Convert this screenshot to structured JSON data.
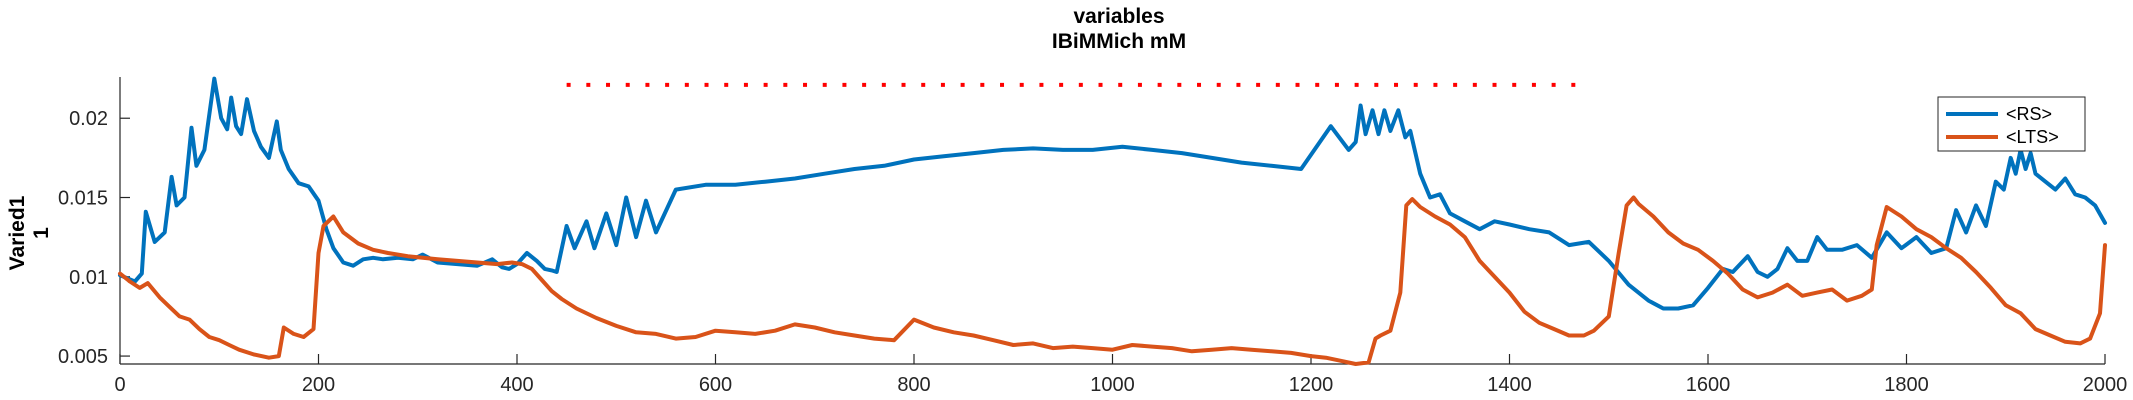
{
  "chart_data": {
    "type": "line",
    "title": [
      "variables",
      "IBiMMich mM"
    ],
    "ylabel": [
      "Varied1",
      "1"
    ],
    "xlabel": "",
    "xlim": [
      0,
      2000
    ],
    "ylim": [
      0.0045,
      0.0226
    ],
    "xticks": [
      0,
      200,
      400,
      600,
      800,
      1000,
      1200,
      1400,
      1600,
      1800,
      2000
    ],
    "yticks": [
      0.005,
      0.01,
      0.015,
      0.02
    ],
    "ytick_labels": [
      "0.005",
      "0.01",
      "0.015",
      "0.02"
    ],
    "grid": false,
    "legend_position": "top-right",
    "stimulus_marker": {
      "x_start": 450,
      "x_end": 1480,
      "y": 0.0221,
      "color": "#ff0000",
      "style": "dotted"
    },
    "series": [
      {
        "name": "<RS>",
        "color": "#0072bd",
        "x": [
          0,
          15,
          22,
          26,
          35,
          45,
          52,
          57,
          65,
          72,
          77,
          85,
          95,
          102,
          108,
          112,
          117,
          122,
          128,
          135,
          142,
          150,
          158,
          162,
          170,
          180,
          190,
          200,
          208,
          215,
          225,
          235,
          245,
          255,
          265,
          280,
          295,
          305,
          320,
          340,
          360,
          375,
          385,
          392,
          400,
          410,
          420,
          428,
          435,
          440,
          450,
          458,
          470,
          478,
          490,
          500,
          510,
          520,
          530,
          540,
          560,
          590,
          620,
          650,
          680,
          710,
          740,
          770,
          800,
          830,
          860,
          890,
          920,
          950,
          980,
          1010,
          1040,
          1070,
          1100,
          1130,
          1160,
          1190,
          1220,
          1238,
          1245,
          1250,
          1255,
          1262,
          1268,
          1274,
          1280,
          1288,
          1295,
          1300,
          1310,
          1320,
          1330,
          1340,
          1355,
          1370,
          1385,
          1400,
          1420,
          1440,
          1460,
          1480,
          1500,
          1520,
          1540,
          1555,
          1570,
          1585,
          1600,
          1615,
          1625,
          1640,
          1650,
          1660,
          1670,
          1680,
          1690,
          1700,
          1710,
          1720,
          1735,
          1750,
          1765,
          1780,
          1795,
          1810,
          1825,
          1840,
          1850,
          1860,
          1870,
          1880,
          1890,
          1898,
          1905,
          1910,
          1915,
          1920,
          1925,
          1930,
          1940,
          1950,
          1960,
          1970,
          1980,
          1990,
          2000
        ],
        "y": [
          0.0101,
          0.0097,
          0.0102,
          0.0141,
          0.0122,
          0.0128,
          0.0163,
          0.0145,
          0.015,
          0.0194,
          0.017,
          0.018,
          0.0225,
          0.02,
          0.0193,
          0.0213,
          0.0195,
          0.019,
          0.0212,
          0.0192,
          0.0182,
          0.0175,
          0.0198,
          0.018,
          0.0168,
          0.0159,
          0.0157,
          0.0148,
          0.013,
          0.0118,
          0.0109,
          0.0107,
          0.0111,
          0.0112,
          0.0111,
          0.0112,
          0.0111,
          0.0114,
          0.0109,
          0.0108,
          0.0107,
          0.0111,
          0.0106,
          0.0105,
          0.0108,
          0.0115,
          0.011,
          0.0105,
          0.0104,
          0.0103,
          0.0132,
          0.0118,
          0.0135,
          0.0118,
          0.014,
          0.012,
          0.015,
          0.0125,
          0.0148,
          0.0128,
          0.0155,
          0.0158,
          0.0158,
          0.016,
          0.0162,
          0.0165,
          0.0168,
          0.017,
          0.0174,
          0.0176,
          0.0178,
          0.018,
          0.0181,
          0.018,
          0.018,
          0.0182,
          0.018,
          0.0178,
          0.0175,
          0.0172,
          0.017,
          0.0168,
          0.0195,
          0.018,
          0.0185,
          0.0208,
          0.019,
          0.0205,
          0.019,
          0.0205,
          0.0192,
          0.0205,
          0.0188,
          0.0192,
          0.0165,
          0.015,
          0.0152,
          0.014,
          0.0135,
          0.013,
          0.0135,
          0.0133,
          0.013,
          0.0128,
          0.012,
          0.0122,
          0.011,
          0.0095,
          0.0085,
          0.008,
          0.008,
          0.0082,
          0.0093,
          0.0105,
          0.0103,
          0.0113,
          0.0103,
          0.01,
          0.0105,
          0.0118,
          0.011,
          0.011,
          0.0125,
          0.0117,
          0.0117,
          0.012,
          0.0112,
          0.0128,
          0.0118,
          0.0125,
          0.0115,
          0.0118,
          0.0142,
          0.0128,
          0.0145,
          0.0132,
          0.016,
          0.0155,
          0.0175,
          0.0165,
          0.018,
          0.0168,
          0.0178,
          0.0165,
          0.016,
          0.0155,
          0.0162,
          0.0152,
          0.015,
          0.0145,
          0.0134
        ]
      },
      {
        "name": "<LTS>",
        "color": "#d95319",
        "x": [
          0,
          10,
          20,
          28,
          40,
          50,
          60,
          70,
          80,
          90,
          100,
          110,
          120,
          135,
          150,
          160,
          165,
          175,
          185,
          195,
          200,
          205,
          215,
          225,
          240,
          255,
          270,
          290,
          305,
          320,
          340,
          360,
          380,
          395,
          405,
          415,
          425,
          435,
          445,
          460,
          480,
          500,
          520,
          540,
          560,
          580,
          600,
          620,
          640,
          660,
          680,
          700,
          720,
          740,
          760,
          780,
          800,
          820,
          840,
          860,
          880,
          900,
          920,
          940,
          960,
          980,
          1000,
          1020,
          1040,
          1060,
          1080,
          1100,
          1120,
          1140,
          1160,
          1180,
          1200,
          1215,
          1230,
          1245,
          1258,
          1265,
          1270,
          1280,
          1290,
          1296,
          1302,
          1310,
          1325,
          1340,
          1355,
          1370,
          1385,
          1400,
          1415,
          1430,
          1445,
          1460,
          1475,
          1485,
          1500,
          1510,
          1518,
          1525,
          1530,
          1545,
          1560,
          1575,
          1590,
          1605,
          1620,
          1635,
          1650,
          1665,
          1680,
          1695,
          1710,
          1725,
          1740,
          1755,
          1765,
          1770,
          1780,
          1795,
          1810,
          1825,
          1840,
          1855,
          1870,
          1885,
          1900,
          1915,
          1930,
          1945,
          1960,
          1975,
          1985,
          1995,
          2000
        ],
        "y": [
          0.0102,
          0.0097,
          0.0093,
          0.0096,
          0.0087,
          0.0081,
          0.0075,
          0.0073,
          0.0067,
          0.0062,
          0.006,
          0.0057,
          0.0054,
          0.0051,
          0.0049,
          0.005,
          0.0068,
          0.0064,
          0.0062,
          0.0067,
          0.0115,
          0.0132,
          0.0138,
          0.0128,
          0.0121,
          0.0117,
          0.0115,
          0.0113,
          0.0112,
          0.0111,
          0.011,
          0.0109,
          0.0108,
          0.0109,
          0.0108,
          0.0105,
          0.0098,
          0.0091,
          0.0086,
          0.008,
          0.0074,
          0.0069,
          0.0065,
          0.0064,
          0.0061,
          0.0062,
          0.0066,
          0.0065,
          0.0064,
          0.0066,
          0.007,
          0.0068,
          0.0065,
          0.0063,
          0.0061,
          0.006,
          0.0073,
          0.0068,
          0.0065,
          0.0063,
          0.006,
          0.0057,
          0.0058,
          0.0055,
          0.0056,
          0.0055,
          0.0054,
          0.0057,
          0.0056,
          0.0055,
          0.0053,
          0.0054,
          0.0055,
          0.0054,
          0.0053,
          0.0052,
          0.005,
          0.0049,
          0.0047,
          0.0045,
          0.0046,
          0.0061,
          0.0063,
          0.0066,
          0.009,
          0.0145,
          0.0149,
          0.0144,
          0.0138,
          0.0133,
          0.0125,
          0.011,
          0.01,
          0.009,
          0.0078,
          0.0071,
          0.0067,
          0.0063,
          0.0063,
          0.0066,
          0.0075,
          0.0115,
          0.0145,
          0.015,
          0.0146,
          0.0138,
          0.0128,
          0.0121,
          0.0117,
          0.011,
          0.0102,
          0.0092,
          0.0087,
          0.009,
          0.0095,
          0.0088,
          0.009,
          0.0092,
          0.0085,
          0.0088,
          0.0092,
          0.012,
          0.0144,
          0.0138,
          0.013,
          0.0125,
          0.0118,
          0.0112,
          0.0103,
          0.0093,
          0.0082,
          0.0077,
          0.0067,
          0.0063,
          0.0059,
          0.0058,
          0.0061,
          0.0077,
          0.012
        ]
      }
    ]
  }
}
